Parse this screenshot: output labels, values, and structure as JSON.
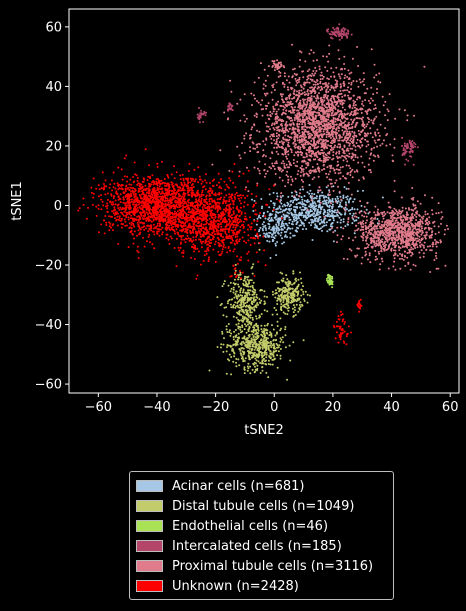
{
  "chart_data": {
    "type": "scatter",
    "xlabel": "tSNE2",
    "ylabel": "tSNE1",
    "xlim": [
      -70,
      63
    ],
    "ylim": [
      -63,
      66
    ],
    "xticks": [
      -60,
      -40,
      -20,
      0,
      20,
      40,
      60
    ],
    "yticks": [
      -60,
      -40,
      -20,
      0,
      20,
      40,
      60
    ],
    "xtick_labels": [
      "−60",
      "−40",
      "−20",
      "0",
      "20",
      "40",
      "60"
    ],
    "ytick_labels": [
      "−60",
      "−40",
      "−20",
      "0",
      "20",
      "40",
      "60"
    ],
    "grid": false,
    "legend_position": "below",
    "background": "#000000",
    "series": [
      {
        "name": "Acinar cells (n=681)",
        "count": 681,
        "color": "#a6c8e6",
        "clusters": [
          {
            "cx": 13,
            "cy": -2,
            "sx": 8,
            "sy": 3.5,
            "n": 560
          },
          {
            "cx": 0,
            "cy": -8,
            "sx": 2.5,
            "sy": 2.5,
            "n": 121
          }
        ]
      },
      {
        "name": "Distal tubule cells (n=1049)",
        "count": 1049,
        "color": "#c3cc6a",
        "clusters": [
          {
            "cx": -10,
            "cy": -32,
            "sx": 3,
            "sy": 5,
            "n": 300
          },
          {
            "cx": -6,
            "cy": -47,
            "sx": 5,
            "sy": 4,
            "n": 500
          },
          {
            "cx": 5,
            "cy": -30,
            "sx": 2.5,
            "sy": 3,
            "n": 249
          }
        ]
      },
      {
        "name": "Endothelial cells (n=46)",
        "count": 46,
        "color": "#a9e255",
        "clusters": [
          {
            "cx": 19,
            "cy": -25,
            "sx": 0.5,
            "sy": 1,
            "n": 46
          }
        ]
      },
      {
        "name": "Intercalated cells (n=185)",
        "count": 185,
        "color": "#b4466a",
        "clusters": [
          {
            "cx": 22,
            "cy": 58,
            "sx": 2,
            "sy": 1,
            "n": 80
          },
          {
            "cx": 46,
            "cy": 19,
            "sx": 1.2,
            "sy": 2,
            "n": 60
          },
          {
            "cx": -25,
            "cy": 30,
            "sx": 0.6,
            "sy": 1,
            "n": 25
          },
          {
            "cx": -15,
            "cy": 33,
            "sx": 0.5,
            "sy": 0.8,
            "n": 20
          }
        ]
      },
      {
        "name": "Proximal tubule cells (n=3116)",
        "count": 3116,
        "color": "#e07b8b",
        "clusters": [
          {
            "cx": 15,
            "cy": 27,
            "sx": 10,
            "sy": 9,
            "n": 2100
          },
          {
            "cx": 42,
            "cy": -9,
            "sx": 7,
            "sy": 4.5,
            "n": 950
          },
          {
            "cx": 1,
            "cy": 47,
            "sx": 1,
            "sy": 0.8,
            "n": 40
          },
          {
            "cx": 0,
            "cy": 15,
            "sx": 4,
            "sy": 4,
            "n": 26
          }
        ]
      },
      {
        "name": "Unknown (n=2428)",
        "count": 2428,
        "color": "#ff0000",
        "clusters": [
          {
            "cx": -40,
            "cy": 0,
            "sx": 9,
            "sy": 5,
            "n": 1500
          },
          {
            "cx": -20,
            "cy": -5,
            "sx": 7,
            "sy": 6,
            "n": 850
          },
          {
            "cx": 23,
            "cy": -42,
            "sx": 1.2,
            "sy": 3,
            "n": 45
          },
          {
            "cx": 29,
            "cy": -34,
            "sx": 0.6,
            "sy": 1,
            "n": 20
          },
          {
            "cx": -13,
            "cy": -22,
            "sx": 1.5,
            "sy": 1.5,
            "n": 13
          }
        ]
      }
    ]
  }
}
